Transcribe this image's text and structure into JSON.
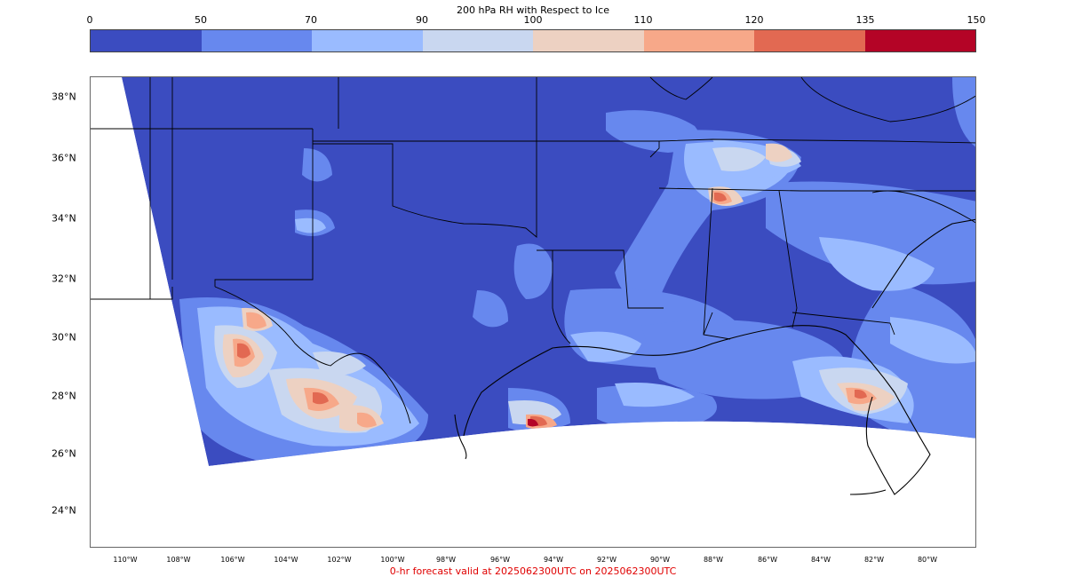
{
  "title": "200 hPa RH with Respect to Ice",
  "colorbar": {
    "ticks": [
      "0",
      "50",
      "70",
      "90",
      "100",
      "110",
      "120",
      "135",
      "150"
    ],
    "colors": [
      "#3b4cc0",
      "#6788ee",
      "#9abbff",
      "#c9d7f0",
      "#edd1c2",
      "#f7a889",
      "#e26952",
      "#b40426"
    ]
  },
  "lat_labels": [
    "38°N",
    "36°N",
    "34°N",
    "32°N",
    "30°N",
    "28°N",
    "26°N",
    "24°N"
  ],
  "lon_labels": [
    "110°W",
    "108°W",
    "106°W",
    "104°W",
    "102°W",
    "100°W",
    "98°W",
    "96°W",
    "94°W",
    "92°W",
    "90°W",
    "88°W",
    "86°W",
    "84°W",
    "82°W",
    "80°W"
  ],
  "footer": "0-hr forecast valid at 2025062300UTC on 2025062300UTC"
}
